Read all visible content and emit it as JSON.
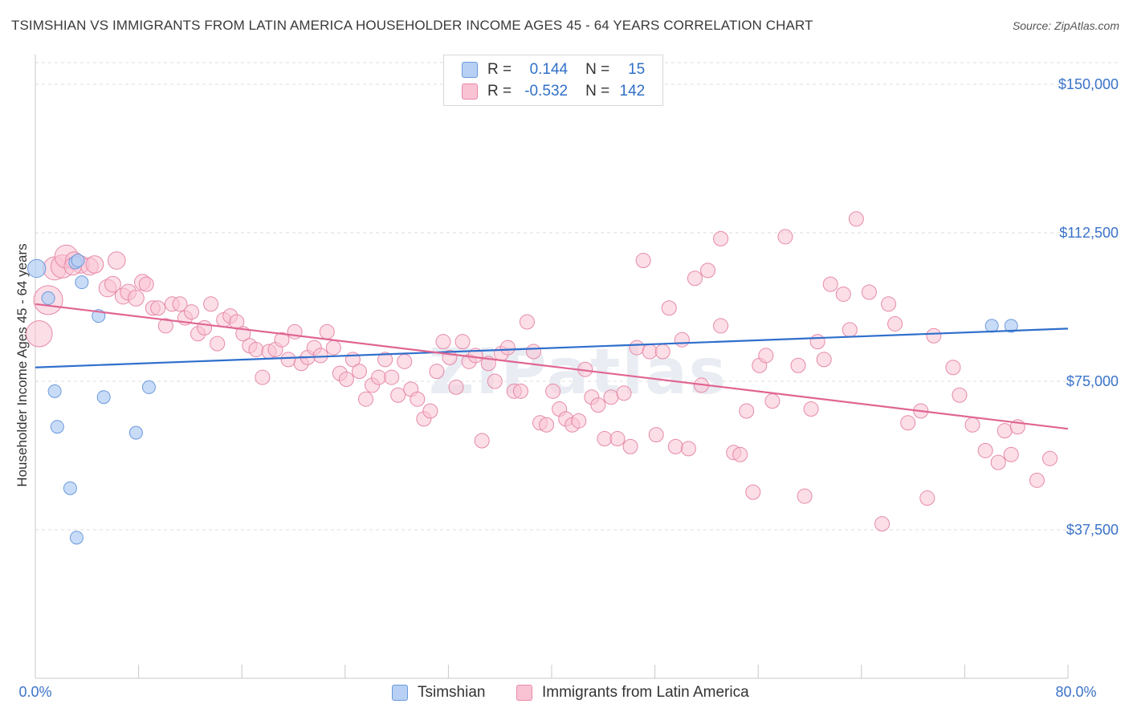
{
  "title": "TSIMSHIAN VS IMMIGRANTS FROM LATIN AMERICA HOUSEHOLDER INCOME AGES 45 - 64 YEARS CORRELATION CHART",
  "source": "Source: ZipAtlas.com",
  "watermark": "ZIPatlas",
  "colors": {
    "blue": "#6b99dd",
    "blue_fill": "#b7d0f4",
    "pink": "#e68aa8",
    "pink_fill": "#f9c3d3",
    "blue_line": "#2f6fcc",
    "pink_line": "#e06592",
    "axis_text": "#3b73c9"
  },
  "legend": {
    "rows": [
      {
        "r_label": "R =",
        "r_value": "0.144",
        "n_label": "N =",
        "n_value": "15"
      },
      {
        "r_label": "R =",
        "r_value": "-0.532",
        "n_label": "N =",
        "n_value": "142"
      }
    ]
  },
  "bottom_legend": {
    "blue_label": "Tsimshian",
    "pink_label": "Immigrants from Latin America"
  },
  "chart_data": {
    "type": "scatter",
    "title": "TSIMSHIAN VS IMMIGRANTS FROM LATIN AMERICA HOUSEHOLDER INCOME AGES 45 - 64 YEARS CORRELATION CHART",
    "ylabel": "Householder Income Ages 45 - 64 years",
    "xlabel": "",
    "x_unit": "percent",
    "xlim": [
      0,
      80
    ],
    "ylim": [
      0,
      157500
    ],
    "x_tick_labels": [
      "0.0%",
      "80.0%"
    ],
    "y_ticks": [
      37500,
      75000,
      112500,
      150000
    ],
    "y_tick_labels": [
      "$37,500",
      "$75,000",
      "$112,500",
      "$150,000"
    ],
    "grid": "horizontal dashed",
    "legend_position": "top-center",
    "series": [
      {
        "name": "Tsimshian",
        "trend": [
          [
            0,
            78500
          ],
          [
            80,
            88300
          ]
        ],
        "points": [
          [
            0.1,
            103500,
            1.4
          ],
          [
            1.0,
            96000,
            1.0
          ],
          [
            1.5,
            72500,
            1.0
          ],
          [
            1.7,
            63500,
            1.0
          ],
          [
            2.7,
            48000,
            1.0
          ],
          [
            3.2,
            35500,
            1.0
          ],
          [
            3.1,
            105000,
            1.0
          ],
          [
            3.6,
            100000,
            1.0
          ],
          [
            4.9,
            91500,
            1.0
          ],
          [
            5.3,
            71000,
            1.0
          ],
          [
            7.8,
            62000,
            1.0
          ],
          [
            8.8,
            73500,
            1.0
          ],
          [
            74.1,
            89000,
            1.0
          ],
          [
            75.6,
            89000,
            1.0
          ],
          [
            3.3,
            105500,
            1.0
          ]
        ]
      },
      {
        "name": "Immigrants from Latin America",
        "trend": [
          [
            0,
            94500
          ],
          [
            80,
            63000
          ]
        ],
        "points": [
          [
            0.3,
            87000,
            1.8
          ],
          [
            1.0,
            95500,
            2.0
          ],
          [
            1.5,
            103500,
            1.6
          ],
          [
            2.1,
            104000,
            1.6
          ],
          [
            2.4,
            106500,
            1.6
          ],
          [
            3.0,
            105500,
            1.2
          ],
          [
            3.5,
            104500,
            1.2
          ],
          [
            4.2,
            104000,
            1.2
          ],
          [
            4.6,
            104500,
            1.2
          ],
          [
            5.6,
            98500,
            1.2
          ],
          [
            6.0,
            99500,
            1.1
          ],
          [
            6.3,
            105500,
            1.2
          ],
          [
            6.8,
            96500,
            1.1
          ],
          [
            7.2,
            97500,
            1.1
          ],
          [
            7.8,
            96000,
            1.1
          ],
          [
            8.3,
            100000,
            1.1
          ],
          [
            8.6,
            99500,
            1.0
          ],
          [
            9.1,
            93500,
            1.0
          ],
          [
            9.5,
            93500,
            1.0
          ],
          [
            10.1,
            89000,
            1.0
          ],
          [
            10.6,
            94500,
            1.0
          ],
          [
            11.2,
            94500,
            1.0
          ],
          [
            11.6,
            91000,
            1.0
          ],
          [
            12.1,
            92500,
            1.0
          ],
          [
            12.6,
            87000,
            1.0
          ],
          [
            13.1,
            88500,
            1.0
          ],
          [
            13.6,
            94500,
            1.0
          ],
          [
            14.1,
            84500,
            1.0
          ],
          [
            14.6,
            90500,
            1.0
          ],
          [
            15.1,
            91500,
            1.0
          ],
          [
            15.6,
            90000,
            1.0
          ],
          [
            16.1,
            87000,
            1.0
          ],
          [
            16.6,
            84000,
            1.0
          ],
          [
            17.1,
            83000,
            1.0
          ],
          [
            17.6,
            76000,
            1.0
          ],
          [
            18.1,
            82500,
            1.0
          ],
          [
            18.6,
            83000,
            1.0
          ],
          [
            19.1,
            85500,
            1.0
          ],
          [
            19.6,
            80500,
            1.0
          ],
          [
            20.1,
            87500,
            1.0
          ],
          [
            20.6,
            79500,
            1.0
          ],
          [
            21.1,
            81000,
            1.0
          ],
          [
            21.6,
            83500,
            1.0
          ],
          [
            22.1,
            81500,
            1.0
          ],
          [
            22.6,
            87500,
            1.0
          ],
          [
            23.1,
            83500,
            1.0
          ],
          [
            23.6,
            77000,
            1.0
          ],
          [
            24.1,
            75500,
            1.0
          ],
          [
            24.6,
            80500,
            1.0
          ],
          [
            25.1,
            77500,
            1.0
          ],
          [
            25.6,
            70500,
            1.0
          ],
          [
            26.1,
            74000,
            1.0
          ],
          [
            26.6,
            76000,
            1.0
          ],
          [
            27.1,
            80500,
            1.0
          ],
          [
            27.6,
            76000,
            1.0
          ],
          [
            28.1,
            71500,
            1.0
          ],
          [
            28.6,
            80000,
            1.0
          ],
          [
            29.1,
            73000,
            1.0
          ],
          [
            29.6,
            70500,
            1.0
          ],
          [
            30.1,
            65500,
            1.0
          ],
          [
            30.6,
            67500,
            1.0
          ],
          [
            31.1,
            77500,
            1.0
          ],
          [
            31.6,
            85000,
            1.0
          ],
          [
            32.1,
            81000,
            1.0
          ],
          [
            32.6,
            73500,
            1.0
          ],
          [
            33.1,
            85000,
            1.0
          ],
          [
            33.6,
            80000,
            1.0
          ],
          [
            34.1,
            81500,
            1.0
          ],
          [
            34.6,
            60000,
            1.0
          ],
          [
            35.1,
            79500,
            1.0
          ],
          [
            35.6,
            75000,
            1.0
          ],
          [
            36.1,
            82000,
            1.0
          ],
          [
            36.6,
            83500,
            1.0
          ],
          [
            37.1,
            72500,
            1.0
          ],
          [
            37.6,
            72500,
            1.0
          ],
          [
            38.1,
            90000,
            1.0
          ],
          [
            38.6,
            82500,
            1.0
          ],
          [
            39.1,
            64500,
            1.0
          ],
          [
            39.6,
            64000,
            1.0
          ],
          [
            40.1,
            72500,
            1.0
          ],
          [
            40.6,
            68000,
            1.0
          ],
          [
            41.1,
            65500,
            1.0
          ],
          [
            41.6,
            64000,
            1.0
          ],
          [
            42.1,
            65000,
            1.0
          ],
          [
            42.6,
            78000,
            1.0
          ],
          [
            43.1,
            71000,
            1.0
          ],
          [
            43.6,
            69000,
            1.0
          ],
          [
            44.1,
            60500,
            1.0
          ],
          [
            44.6,
            71000,
            1.0
          ],
          [
            45.1,
            60500,
            1.0
          ],
          [
            45.6,
            72000,
            1.0
          ],
          [
            46.1,
            58500,
            1.0
          ],
          [
            46.6,
            83500,
            1.0
          ],
          [
            47.1,
            105500,
            1.0
          ],
          [
            47.6,
            82500,
            1.0
          ],
          [
            48.1,
            61500,
            1.0
          ],
          [
            48.6,
            82500,
            1.0
          ],
          [
            49.1,
            93500,
            1.0
          ],
          [
            49.6,
            58500,
            1.0
          ],
          [
            50.1,
            85500,
            1.0
          ],
          [
            50.6,
            58000,
            1.0
          ],
          [
            51.1,
            101000,
            1.0
          ],
          [
            51.6,
            74000,
            1.0
          ],
          [
            52.1,
            103000,
            1.0
          ],
          [
            53.1,
            89000,
            1.0
          ],
          [
            53.1,
            111000,
            1.0
          ],
          [
            54.1,
            57000,
            1.0
          ],
          [
            54.6,
            56500,
            1.0
          ],
          [
            55.1,
            67500,
            1.0
          ],
          [
            55.6,
            47000,
            1.0
          ],
          [
            56.1,
            79000,
            1.0
          ],
          [
            56.6,
            81500,
            1.0
          ],
          [
            57.1,
            70000,
            1.0
          ],
          [
            58.1,
            111500,
            1.0
          ],
          [
            59.1,
            79000,
            1.0
          ],
          [
            59.6,
            46000,
            1.0
          ],
          [
            60.1,
            68000,
            1.0
          ],
          [
            60.6,
            85000,
            1.0
          ],
          [
            61.1,
            80500,
            1.0
          ],
          [
            61.6,
            99500,
            1.0
          ],
          [
            62.6,
            97000,
            1.0
          ],
          [
            63.1,
            88000,
            1.0
          ],
          [
            63.6,
            116000,
            1.0
          ],
          [
            64.6,
            97500,
            1.0
          ],
          [
            65.6,
            39000,
            1.0
          ],
          [
            66.1,
            94500,
            1.0
          ],
          [
            66.6,
            89500,
            1.0
          ],
          [
            67.6,
            64500,
            1.0
          ],
          [
            68.6,
            67500,
            1.0
          ],
          [
            69.1,
            45500,
            1.0
          ],
          [
            69.6,
            86500,
            1.0
          ],
          [
            71.1,
            78500,
            1.0
          ],
          [
            71.6,
            71500,
            1.0
          ],
          [
            72.6,
            64000,
            1.0
          ],
          [
            73.6,
            57500,
            1.0
          ],
          [
            74.6,
            54500,
            1.0
          ],
          [
            75.1,
            62500,
            1.0
          ],
          [
            75.6,
            56500,
            1.0
          ],
          [
            76.1,
            63500,
            1.0
          ],
          [
            77.6,
            50000,
            1.0
          ],
          [
            78.6,
            55500,
            1.0
          ],
          [
            2.9,
            104000,
            1.2
          ]
        ]
      }
    ]
  }
}
